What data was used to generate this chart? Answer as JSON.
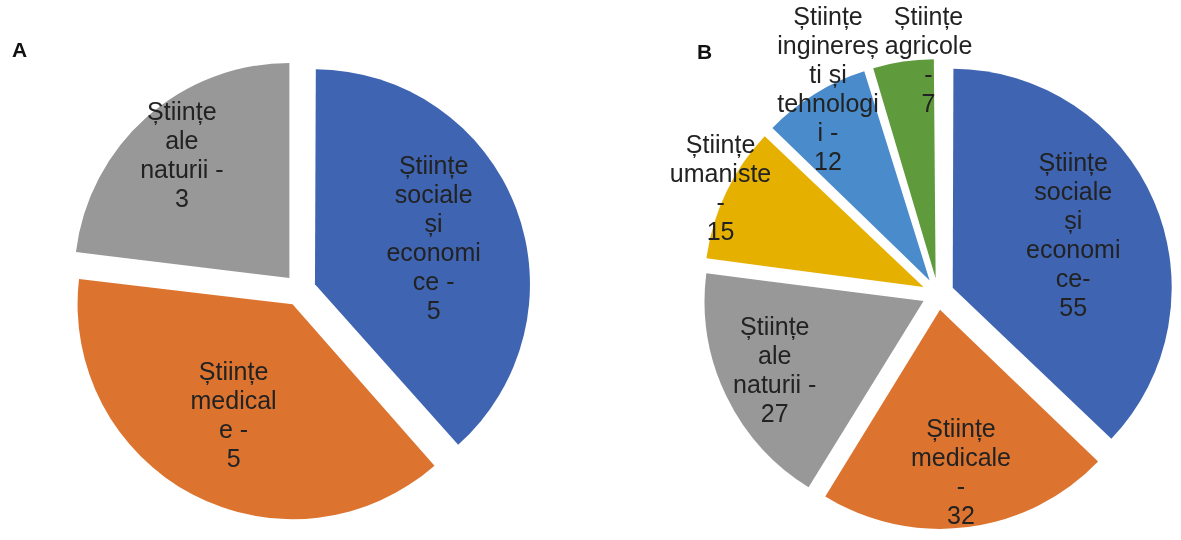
{
  "chart_data": [
    {
      "type": "pie",
      "title": "A",
      "categories": [
        "Științe sociale și economice - ",
        "Științe medicale -",
        "Științe ale naturii - "
      ],
      "values": [
        5,
        5,
        3
      ],
      "data_labels": true,
      "colors": [
        "#3e64b2",
        "#dc7430",
        "#989898"
      ]
    },
    {
      "type": "pie",
      "title": "B",
      "categories": [
        "Științe sociale și economice- ",
        "Științe medicale - ",
        "Științe ale naturii - ",
        "Științe umaniste - ",
        "Științe inginerești și tehnologii - ",
        "Științe agricole - "
      ],
      "values": [
        55,
        32,
        27,
        15,
        12,
        7
      ],
      "data_labels": true,
      "colors": [
        "#3e64b2",
        "#dc7430",
        "#989898",
        "#e6b000",
        "#4a8ccb",
        "#5f9a3d"
      ]
    }
  ]
}
